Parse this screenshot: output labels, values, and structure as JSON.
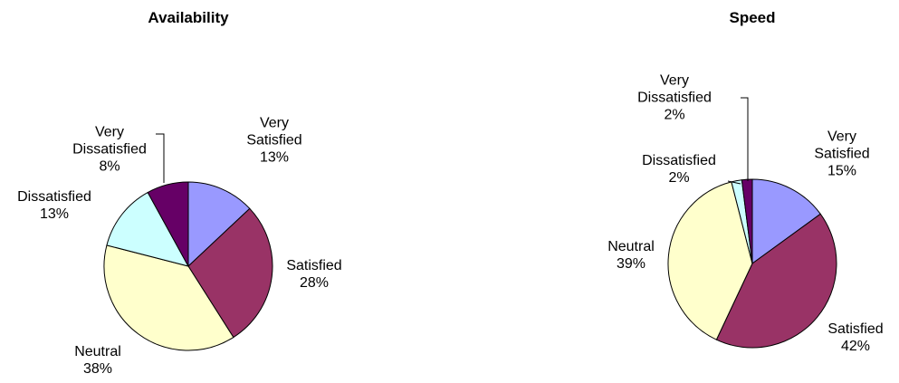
{
  "chart_data": [
    {
      "type": "pie",
      "title": "Availability",
      "categories": [
        "Very Satisfied",
        "Satisfied",
        "Neutral",
        "Dissatisfied",
        "Very Dissatisfied"
      ],
      "values": [
        13,
        28,
        38,
        13,
        8
      ],
      "value_labels": [
        "13%",
        "28%",
        "38%",
        "13%",
        "8%"
      ],
      "colors": [
        "#9999ff",
        "#993366",
        "#ffffcc",
        "#ccffff",
        "#660066"
      ]
    },
    {
      "type": "pie",
      "title": "Speed",
      "categories": [
        "Very Satisfied",
        "Satisfied",
        "Neutral",
        "Dissatisfied",
        "Very Dissatisfied"
      ],
      "values": [
        15,
        42,
        39,
        2,
        2
      ],
      "value_labels": [
        "15%",
        "42%",
        "39%",
        "2%",
        "2%"
      ],
      "colors": [
        "#9999ff",
        "#993366",
        "#ffffcc",
        "#ccffff",
        "#660066"
      ]
    }
  ]
}
